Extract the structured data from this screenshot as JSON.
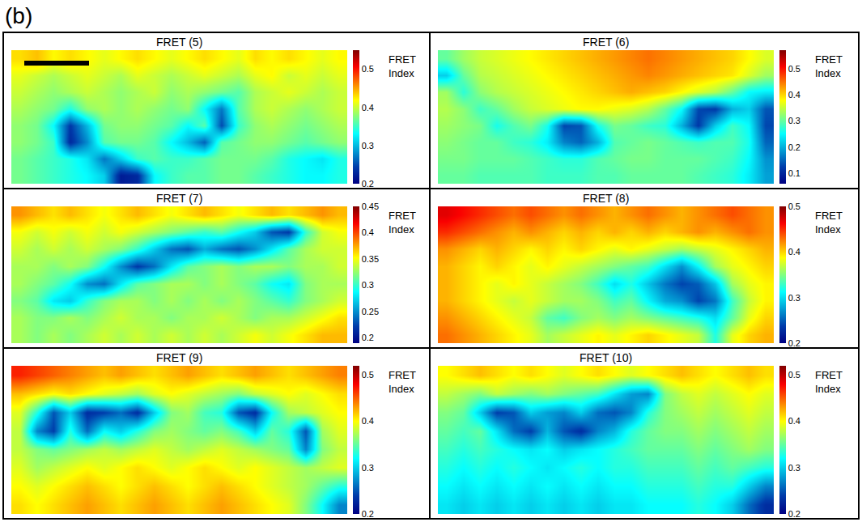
{
  "figure_label": "(b)",
  "chart_data": [
    {
      "type": "heatmap",
      "title": "FRET (5)",
      "colorbar_title": "FRET Index",
      "tick_labels": false,
      "color_range": [
        0.2,
        0.55
      ],
      "color_ticks": [
        0.2,
        0.3,
        0.4,
        0.5
      ],
      "cells": [
        [
          0.43,
          0.44,
          0.42,
          0.43,
          0.42,
          0.41,
          0.42,
          0.43,
          0.42,
          0.41,
          0.42,
          0.43,
          0.42,
          0.41,
          0.43,
          0.42,
          0.43,
          0.42,
          0.41,
          0.42
        ],
        [
          0.41,
          0.4,
          0.39,
          0.4,
          0.41,
          0.4,
          0.39,
          0.41,
          0.4,
          0.39,
          0.4,
          0.41,
          0.4,
          0.39,
          0.41,
          0.42,
          0.4,
          0.41,
          0.4,
          0.41
        ],
        [
          0.4,
          0.39,
          0.38,
          0.39,
          0.4,
          0.39,
          0.38,
          0.39,
          0.4,
          0.38,
          0.39,
          0.38,
          0.37,
          0.36,
          0.39,
          0.4,
          0.41,
          0.4,
          0.39,
          0.4
        ],
        [
          0.39,
          0.38,
          0.37,
          0.34,
          0.38,
          0.39,
          0.38,
          0.39,
          0.38,
          0.37,
          0.38,
          0.33,
          0.27,
          0.36,
          0.39,
          0.4,
          0.39,
          0.38,
          0.39,
          0.4
        ],
        [
          0.38,
          0.37,
          0.33,
          0.24,
          0.3,
          0.37,
          0.38,
          0.38,
          0.37,
          0.36,
          0.33,
          0.36,
          0.25,
          0.35,
          0.38,
          0.39,
          0.38,
          0.37,
          0.38,
          0.39
        ],
        [
          0.38,
          0.37,
          0.35,
          0.23,
          0.28,
          0.36,
          0.37,
          0.37,
          0.36,
          0.33,
          0.3,
          0.26,
          0.36,
          0.37,
          0.38,
          0.38,
          0.37,
          0.36,
          0.37,
          0.38
        ],
        [
          0.37,
          0.36,
          0.35,
          0.34,
          0.32,
          0.27,
          0.31,
          0.35,
          0.36,
          0.35,
          0.35,
          0.36,
          0.37,
          0.37,
          0.37,
          0.36,
          0.34,
          0.33,
          0.32,
          0.34
        ],
        [
          0.37,
          0.36,
          0.35,
          0.34,
          0.33,
          0.31,
          0.22,
          0.23,
          0.33,
          0.35,
          0.36,
          0.36,
          0.37,
          0.37,
          0.36,
          0.35,
          0.34,
          0.33,
          0.33,
          0.34
        ]
      ]
    },
    {
      "type": "heatmap",
      "title": "FRET (6)",
      "colorbar_title": "FRET Index",
      "tick_labels": false,
      "color_range": [
        0.06,
        0.57
      ],
      "color_ticks": [
        0.1,
        0.2,
        0.3,
        0.4,
        0.5
      ],
      "cells": [
        [
          0.3,
          0.33,
          0.35,
          0.36,
          0.37,
          0.38,
          0.39,
          0.4,
          0.41,
          0.42,
          0.43,
          0.44,
          0.45,
          0.44,
          0.43,
          0.42,
          0.41,
          0.4,
          0.38,
          0.36
        ],
        [
          0.22,
          0.3,
          0.34,
          0.35,
          0.36,
          0.37,
          0.38,
          0.39,
          0.4,
          0.41,
          0.42,
          0.43,
          0.44,
          0.43,
          0.42,
          0.41,
          0.4,
          0.39,
          0.36,
          0.33
        ],
        [
          0.33,
          0.27,
          0.32,
          0.34,
          0.35,
          0.36,
          0.37,
          0.38,
          0.39,
          0.4,
          0.41,
          0.42,
          0.41,
          0.4,
          0.38,
          0.36,
          0.34,
          0.3,
          0.25,
          0.24
        ],
        [
          0.34,
          0.32,
          0.28,
          0.3,
          0.33,
          0.35,
          0.36,
          0.37,
          0.38,
          0.38,
          0.37,
          0.36,
          0.34,
          0.3,
          0.25,
          0.13,
          0.12,
          0.2,
          0.22,
          0.14
        ],
        [
          0.33,
          0.32,
          0.31,
          0.26,
          0.29,
          0.31,
          0.26,
          0.13,
          0.14,
          0.26,
          0.31,
          0.3,
          0.28,
          0.27,
          0.2,
          0.12,
          0.22,
          0.28,
          0.25,
          0.13
        ],
        [
          0.32,
          0.31,
          0.3,
          0.3,
          0.28,
          0.27,
          0.24,
          0.17,
          0.15,
          0.2,
          0.29,
          0.3,
          0.31,
          0.3,
          0.29,
          0.28,
          0.29,
          0.29,
          0.26,
          0.15
        ],
        [
          0.31,
          0.31,
          0.3,
          0.3,
          0.3,
          0.29,
          0.28,
          0.27,
          0.27,
          0.29,
          0.3,
          0.31,
          0.31,
          0.3,
          0.3,
          0.3,
          0.29,
          0.28,
          0.25,
          0.18
        ],
        [
          0.3,
          0.3,
          0.29,
          0.29,
          0.29,
          0.29,
          0.28,
          0.28,
          0.28,
          0.29,
          0.29,
          0.3,
          0.3,
          0.3,
          0.3,
          0.29,
          0.28,
          0.27,
          0.24,
          0.19
        ]
      ]
    },
    {
      "type": "heatmap",
      "title": "FRET (7)",
      "colorbar_title": "FRET Index",
      "tick_labels": false,
      "color_range": [
        0.19,
        0.45
      ],
      "color_ticks": [
        0.2,
        0.25,
        0.3,
        0.35,
        0.4,
        0.45
      ],
      "cells": [
        [
          0.38,
          0.37,
          0.36,
          0.37,
          0.36,
          0.35,
          0.36,
          0.37,
          0.36,
          0.35,
          0.36,
          0.37,
          0.36,
          0.35,
          0.36,
          0.37,
          0.36,
          0.37,
          0.38,
          0.37
        ],
        [
          0.35,
          0.34,
          0.35,
          0.34,
          0.35,
          0.34,
          0.35,
          0.34,
          0.33,
          0.32,
          0.31,
          0.3,
          0.31,
          0.29,
          0.27,
          0.23,
          0.22,
          0.3,
          0.34,
          0.35
        ],
        [
          0.34,
          0.33,
          0.34,
          0.33,
          0.34,
          0.33,
          0.32,
          0.3,
          0.27,
          0.24,
          0.23,
          0.26,
          0.24,
          0.23,
          0.25,
          0.28,
          0.31,
          0.33,
          0.34,
          0.34
        ],
        [
          0.33,
          0.33,
          0.32,
          0.33,
          0.32,
          0.29,
          0.25,
          0.22,
          0.24,
          0.28,
          0.31,
          0.32,
          0.33,
          0.32,
          0.33,
          0.33,
          0.32,
          0.33,
          0.33,
          0.34
        ],
        [
          0.33,
          0.32,
          0.31,
          0.29,
          0.25,
          0.24,
          0.28,
          0.31,
          0.32,
          0.33,
          0.33,
          0.32,
          0.33,
          0.32,
          0.31,
          0.29,
          0.28,
          0.32,
          0.33,
          0.33
        ],
        [
          0.32,
          0.31,
          0.28,
          0.27,
          0.3,
          0.32,
          0.33,
          0.33,
          0.32,
          0.33,
          0.32,
          0.33,
          0.32,
          0.33,
          0.32,
          0.31,
          0.3,
          0.32,
          0.33,
          0.34
        ],
        [
          0.33,
          0.32,
          0.32,
          0.33,
          0.32,
          0.33,
          0.34,
          0.33,
          0.33,
          0.32,
          0.33,
          0.33,
          0.34,
          0.33,
          0.32,
          0.33,
          0.33,
          0.34,
          0.35,
          0.36
        ],
        [
          0.33,
          0.32,
          0.33,
          0.32,
          0.33,
          0.34,
          0.33,
          0.34,
          0.33,
          0.34,
          0.33,
          0.34,
          0.33,
          0.34,
          0.35,
          0.34,
          0.35,
          0.36,
          0.37,
          0.37
        ]
      ]
    },
    {
      "type": "heatmap",
      "title": "FRET (8)",
      "colorbar_title": "FRET Index",
      "tick_labels": false,
      "color_range": [
        0.2,
        0.5
      ],
      "color_ticks": [
        0.2,
        0.3,
        0.4,
        0.5
      ],
      "cells": [
        [
          0.47,
          0.46,
          0.45,
          0.44,
          0.43,
          0.44,
          0.43,
          0.42,
          0.43,
          0.42,
          0.41,
          0.42,
          0.43,
          0.42,
          0.41,
          0.42,
          0.43,
          0.44,
          0.43,
          0.42
        ],
        [
          0.45,
          0.44,
          0.43,
          0.42,
          0.41,
          0.42,
          0.41,
          0.4,
          0.41,
          0.4,
          0.41,
          0.4,
          0.41,
          0.4,
          0.41,
          0.42,
          0.41,
          0.42,
          0.43,
          0.42
        ],
        [
          0.42,
          0.41,
          0.4,
          0.41,
          0.4,
          0.39,
          0.4,
          0.39,
          0.4,
          0.39,
          0.38,
          0.39,
          0.38,
          0.37,
          0.36,
          0.37,
          0.38,
          0.39,
          0.4,
          0.41
        ],
        [
          0.41,
          0.4,
          0.39,
          0.4,
          0.39,
          0.38,
          0.39,
          0.38,
          0.37,
          0.36,
          0.35,
          0.34,
          0.33,
          0.3,
          0.27,
          0.31,
          0.36,
          0.38,
          0.39,
          0.4
        ],
        [
          0.41,
          0.4,
          0.39,
          0.38,
          0.39,
          0.38,
          0.37,
          0.36,
          0.35,
          0.33,
          0.3,
          0.32,
          0.29,
          0.26,
          0.24,
          0.25,
          0.29,
          0.36,
          0.38,
          0.39
        ],
        [
          0.41,
          0.4,
          0.39,
          0.38,
          0.37,
          0.38,
          0.37,
          0.36,
          0.36,
          0.35,
          0.33,
          0.34,
          0.31,
          0.28,
          0.27,
          0.24,
          0.26,
          0.33,
          0.37,
          0.39
        ],
        [
          0.42,
          0.41,
          0.4,
          0.39,
          0.38,
          0.37,
          0.34,
          0.33,
          0.35,
          0.36,
          0.35,
          0.36,
          0.35,
          0.34,
          0.33,
          0.32,
          0.3,
          0.34,
          0.38,
          0.4
        ],
        [
          0.43,
          0.42,
          0.41,
          0.4,
          0.39,
          0.38,
          0.36,
          0.37,
          0.38,
          0.39,
          0.38,
          0.39,
          0.4,
          0.39,
          0.38,
          0.37,
          0.32,
          0.38,
          0.4,
          0.41
        ]
      ]
    },
    {
      "type": "heatmap",
      "title": "FRET (9)",
      "colorbar_title": "FRET Index",
      "tick_labels": false,
      "color_range": [
        0.2,
        0.52
      ],
      "color_ticks": [
        0.2,
        0.3,
        0.4,
        0.5
      ],
      "cells": [
        [
          0.47,
          0.46,
          0.45,
          0.44,
          0.43,
          0.42,
          0.43,
          0.42,
          0.41,
          0.42,
          0.43,
          0.42,
          0.41,
          0.42,
          0.43,
          0.42,
          0.41,
          0.42,
          0.43,
          0.44
        ],
        [
          0.42,
          0.41,
          0.4,
          0.41,
          0.4,
          0.39,
          0.38,
          0.37,
          0.39,
          0.4,
          0.39,
          0.38,
          0.37,
          0.36,
          0.38,
          0.39,
          0.4,
          0.39,
          0.4,
          0.41
        ],
        [
          0.39,
          0.33,
          0.25,
          0.3,
          0.23,
          0.24,
          0.26,
          0.23,
          0.3,
          0.36,
          0.37,
          0.34,
          0.33,
          0.25,
          0.23,
          0.32,
          0.37,
          0.38,
          0.39,
          0.4
        ],
        [
          0.38,
          0.27,
          0.24,
          0.33,
          0.26,
          0.32,
          0.3,
          0.33,
          0.36,
          0.37,
          0.36,
          0.35,
          0.36,
          0.34,
          0.3,
          0.35,
          0.33,
          0.25,
          0.37,
          0.39
        ],
        [
          0.38,
          0.36,
          0.35,
          0.36,
          0.37,
          0.38,
          0.37,
          0.38,
          0.39,
          0.38,
          0.37,
          0.38,
          0.39,
          0.38,
          0.37,
          0.36,
          0.35,
          0.27,
          0.36,
          0.38
        ],
        [
          0.39,
          0.37,
          0.38,
          0.39,
          0.4,
          0.39,
          0.4,
          0.41,
          0.4,
          0.39,
          0.4,
          0.41,
          0.4,
          0.39,
          0.4,
          0.39,
          0.38,
          0.37,
          0.38,
          0.39
        ],
        [
          0.4,
          0.39,
          0.4,
          0.41,
          0.42,
          0.41,
          0.4,
          0.41,
          0.42,
          0.41,
          0.4,
          0.41,
          0.42,
          0.41,
          0.4,
          0.39,
          0.38,
          0.37,
          0.35,
          0.33
        ],
        [
          0.41,
          0.4,
          0.41,
          0.42,
          0.43,
          0.42,
          0.41,
          0.42,
          0.43,
          0.42,
          0.41,
          0.42,
          0.43,
          0.42,
          0.41,
          0.4,
          0.39,
          0.36,
          0.32,
          0.27
        ]
      ]
    },
    {
      "type": "heatmap",
      "title": "FRET (10)",
      "colorbar_title": "FRET Index",
      "tick_labels": false,
      "color_range": [
        0.2,
        0.52
      ],
      "color_ticks": [
        0.2,
        0.3,
        0.4,
        0.5
      ],
      "cells": [
        [
          0.4,
          0.41,
          0.42,
          0.41,
          0.4,
          0.41,
          0.4,
          0.39,
          0.4,
          0.41,
          0.4,
          0.39,
          0.4,
          0.41,
          0.42,
          0.41,
          0.4,
          0.41,
          0.42,
          0.41
        ],
        [
          0.38,
          0.37,
          0.36,
          0.38,
          0.37,
          0.36,
          0.37,
          0.36,
          0.35,
          0.34,
          0.31,
          0.28,
          0.27,
          0.36,
          0.38,
          0.39,
          0.38,
          0.39,
          0.4,
          0.39
        ],
        [
          0.36,
          0.35,
          0.3,
          0.24,
          0.25,
          0.3,
          0.28,
          0.27,
          0.3,
          0.26,
          0.25,
          0.27,
          0.33,
          0.36,
          0.37,
          0.38,
          0.37,
          0.38,
          0.39,
          0.38
        ],
        [
          0.35,
          0.34,
          0.35,
          0.31,
          0.26,
          0.24,
          0.29,
          0.25,
          0.23,
          0.27,
          0.29,
          0.33,
          0.35,
          0.36,
          0.36,
          0.37,
          0.36,
          0.37,
          0.38,
          0.37
        ],
        [
          0.34,
          0.33,
          0.34,
          0.33,
          0.32,
          0.31,
          0.32,
          0.3,
          0.31,
          0.32,
          0.33,
          0.34,
          0.35,
          0.35,
          0.35,
          0.36,
          0.35,
          0.36,
          0.37,
          0.36
        ],
        [
          0.33,
          0.32,
          0.33,
          0.32,
          0.33,
          0.32,
          0.31,
          0.32,
          0.33,
          0.32,
          0.33,
          0.33,
          0.34,
          0.34,
          0.34,
          0.35,
          0.34,
          0.35,
          0.34,
          0.33
        ],
        [
          0.32,
          0.31,
          0.32,
          0.31,
          0.32,
          0.31,
          0.32,
          0.31,
          0.32,
          0.31,
          0.32,
          0.32,
          0.33,
          0.33,
          0.33,
          0.34,
          0.33,
          0.33,
          0.3,
          0.27
        ],
        [
          0.31,
          0.3,
          0.31,
          0.3,
          0.31,
          0.3,
          0.31,
          0.3,
          0.31,
          0.3,
          0.31,
          0.31,
          0.32,
          0.32,
          0.32,
          0.33,
          0.32,
          0.3,
          0.26,
          0.23
        ]
      ]
    }
  ]
}
